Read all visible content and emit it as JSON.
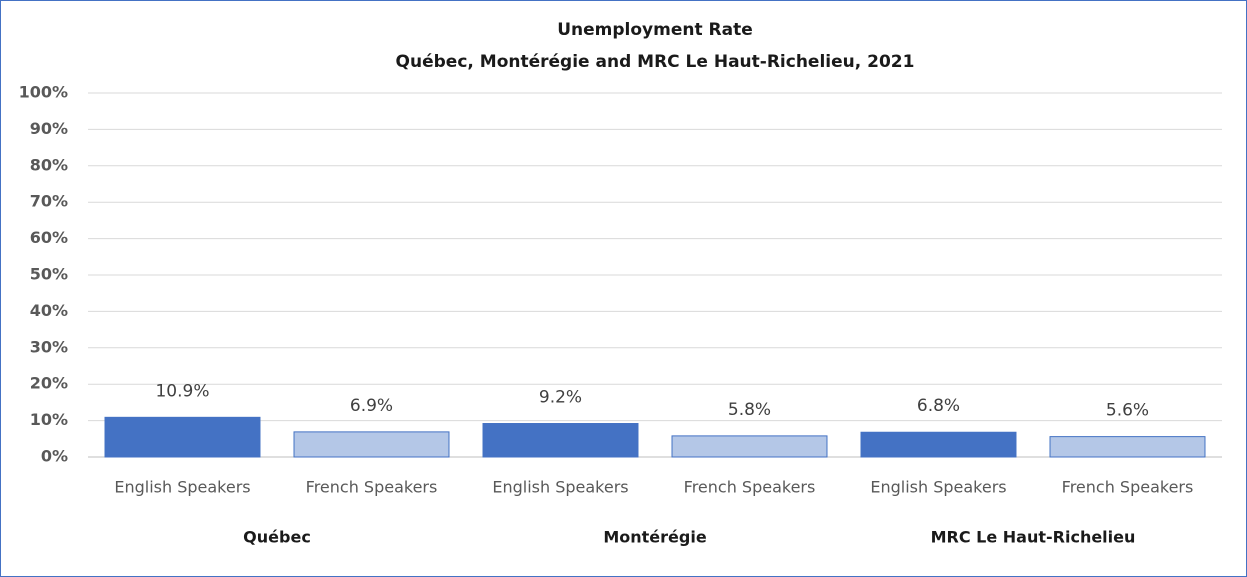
{
  "chart_data": {
    "type": "bar",
    "title": "Unemployment Rate",
    "subtitle": "Québec, Montérégie and MRC Le Haut-Richelieu,  2021",
    "colors": [
      "#4472c4",
      "#b4c7e7"
    ],
    "groups": [
      {
        "name": "Québec",
        "categories": [
          "English Speakers",
          "French Speakers"
        ],
        "values": [
          10.9,
          6.9
        ],
        "value_labels": [
          "10.9%",
          "6.9%"
        ]
      },
      {
        "name": "Montérégie",
        "categories": [
          "English Speakers",
          "French Speakers"
        ],
        "values": [
          9.2,
          5.8
        ],
        "value_labels": [
          "9.2%",
          "5.8%"
        ]
      },
      {
        "name": "MRC Le Haut-Richelieu",
        "categories": [
          "English Speakers",
          "French Speakers"
        ],
        "values": [
          6.8,
          5.6
        ],
        "value_labels": [
          "6.8%",
          "5.6%"
        ]
      }
    ],
    "ylim": [
      0,
      100
    ],
    "yticks": [
      {
        "value": 0,
        "label": "0%"
      },
      {
        "value": 10,
        "label": "10%"
      },
      {
        "value": 20,
        "label": "20%"
      },
      {
        "value": 30,
        "label": "30%"
      },
      {
        "value": 40,
        "label": "40%"
      },
      {
        "value": 50,
        "label": "50%"
      },
      {
        "value": 60,
        "label": "60%"
      },
      {
        "value": 70,
        "label": "70%"
      },
      {
        "value": 80,
        "label": "80%"
      },
      {
        "value": 90,
        "label": "90%"
      },
      {
        "value": 100,
        "label": "100%"
      }
    ],
    "grid": true
  }
}
